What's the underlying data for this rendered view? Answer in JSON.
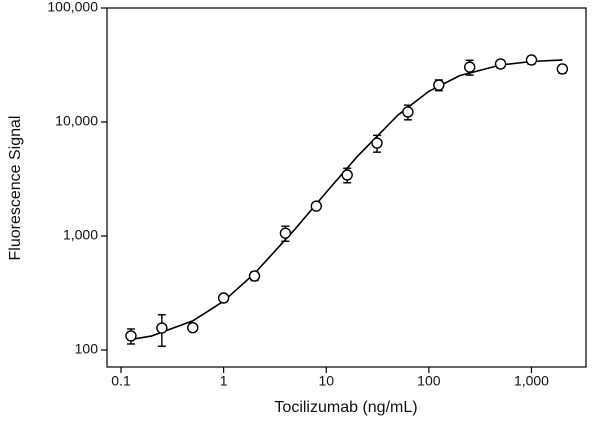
{
  "chart_data": {
    "type": "scatter",
    "xlabel": "Tocilizumab (ng/mL)",
    "ylabel": "Fluorescence Signal",
    "xscale": "log",
    "yscale": "log",
    "xlim": [
      0.073,
      3400
    ],
    "ylim": [
      71,
      100000
    ],
    "xticks": [
      0.1,
      1,
      10,
      100,
      {
        "value": 1000,
        "label": "1,000"
      }
    ],
    "yticks": [
      100,
      {
        "value": 1000,
        "label": "1,000"
      },
      {
        "value": 10000,
        "label": "10,000"
      },
      {
        "value": 100000,
        "label": "100,000"
      }
    ],
    "color": "#000000",
    "x": [
      0.125,
      0.25,
      0.5,
      1,
      2,
      4,
      8,
      16,
      31.25,
      62.5,
      125,
      250,
      500,
      1000,
      2000
    ],
    "values": [
      133,
      156,
      157,
      286,
      446,
      1060,
      1830,
      3430,
      6540,
      12250,
      21100,
      30300,
      32300,
      35000,
      29200
    ],
    "errors": [
      20,
      48,
      8,
      20,
      40,
      160,
      100,
      500,
      1100,
      1800,
      2300,
      4500,
      2600,
      2800,
      2400
    ],
    "fit": {
      "x": [
        0.12,
        0.2,
        0.5,
        1,
        2,
        5,
        10,
        20,
        50,
        100,
        200,
        500,
        1000,
        2000
      ],
      "values": [
        123,
        133,
        180,
        268,
        469,
        1159,
        2415,
        4967,
        11515,
        18600,
        25528,
        31620,
        33943,
        35070
      ]
    }
  }
}
